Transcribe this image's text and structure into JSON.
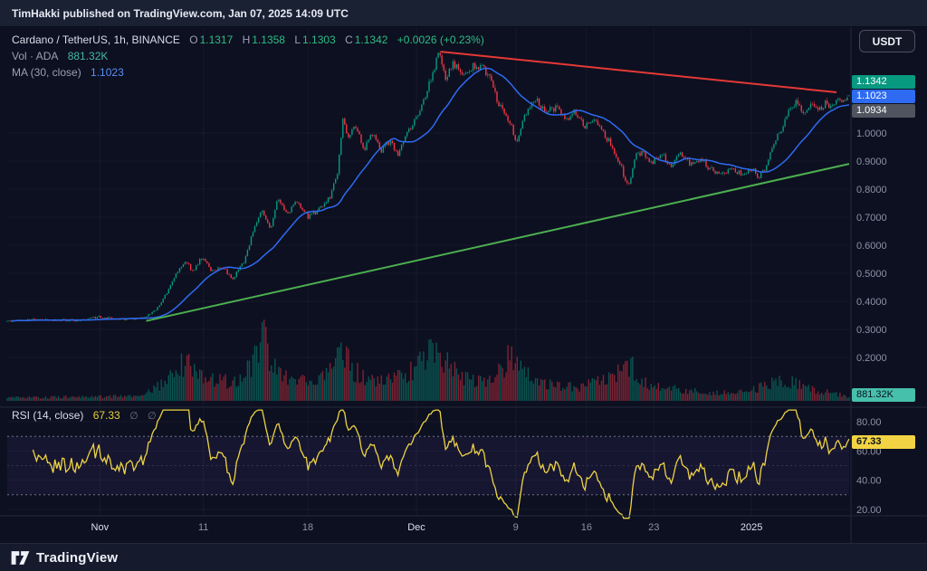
{
  "header": {
    "published_line": "TimHakki published on TradingView.com, Jan 07, 2025 14:09 UTC"
  },
  "toolbar": {
    "currency_button": "USDT"
  },
  "legend": {
    "symbol": "Cardano / TetherUS, 1h, BINANCE",
    "ohlc": {
      "o_label": "O",
      "o": "1.1317",
      "h_label": "H",
      "h": "1.1358",
      "l_label": "L",
      "l": "1.1303",
      "c_label": "C",
      "c": "1.1342",
      "change": "+0.0026 (+0.23%)"
    },
    "volume": {
      "label": "Vol · ADA",
      "value": "881.32K"
    },
    "ma": {
      "label": "MA (30, close)",
      "value": "1.1023"
    }
  },
  "rsi_legend": {
    "label": "RSI (14, close)",
    "value": "67.33",
    "icons": [
      "∅",
      "∅"
    ]
  },
  "axis": {
    "price_labels": [
      {
        "text": "1.0000",
        "p": 1.0
      },
      {
        "text": "0.9000",
        "p": 0.9
      },
      {
        "text": "0.8000",
        "p": 0.8
      },
      {
        "text": "0.7000",
        "p": 0.7
      },
      {
        "text": "0.6000",
        "p": 0.6
      },
      {
        "text": "0.5000",
        "p": 0.5
      },
      {
        "text": "0.4000",
        "p": 0.4
      },
      {
        "text": "0.3000",
        "p": 0.3
      },
      {
        "text": "0.2000",
        "p": 0.2
      }
    ],
    "rsi_labels": [
      {
        "text": "80.00",
        "v": 80
      },
      {
        "text": "60.00",
        "v": 60
      },
      {
        "text": "40.00",
        "v": 40
      },
      {
        "text": "20.00",
        "v": 20
      }
    ],
    "time_labels": [
      {
        "text": "Nov",
        "t": 0.11,
        "major": true
      },
      {
        "text": "11",
        "t": 0.233,
        "major": false
      },
      {
        "text": "18",
        "t": 0.357,
        "major": false
      },
      {
        "text": "Dec",
        "t": 0.486,
        "major": true
      },
      {
        "text": "9",
        "t": 0.604,
        "major": false
      },
      {
        "text": "16",
        "t": 0.688,
        "major": false
      },
      {
        "text": "23",
        "t": 0.768,
        "major": false
      },
      {
        "text": "2025",
        "t": 0.884,
        "major": true
      }
    ],
    "badges": {
      "last_price": "1.1342",
      "ma_value": "1.1023",
      "secondary_price": "1.0934",
      "volume": "881.32K",
      "rsi": "67.33"
    }
  },
  "footer": {
    "brand": "TradingView"
  },
  "colors": {
    "bg": "#0d1020",
    "up": "#089981",
    "down": "#f23645",
    "vol_up": "rgba(8,153,129,0.5)",
    "vol_down": "rgba(242,54,69,0.5)",
    "ma": "#2e6bf2",
    "rsi_line": "#edd344",
    "rsi_band_line": "#7e8497",
    "rsi_band_fill": "rgba(121,83,210,0.10)",
    "grid": "rgba(150,160,190,0.07)",
    "separator": "#232a3b",
    "axis_text": "#8b92a5",
    "axis_text_major": "#dbe0ec"
  },
  "chart_data": {
    "type": "candlestick",
    "symbol": "ADA/USDT",
    "exchange": "BINANCE",
    "interval": "1h",
    "title": "Cardano / TetherUS, 1h, BINANCE",
    "x_axis_span": "Nov 2024 - Jan 2025",
    "y_axis": {
      "min": 0.2,
      "max": 1.32,
      "tick_step": 0.1
    },
    "ohlc_current": {
      "open": 1.1317,
      "high": 1.1358,
      "low": 1.1303,
      "close": 1.1342,
      "change": 0.0026,
      "change_pct": 0.23
    },
    "ma": {
      "period": 30,
      "source": "close",
      "value": 1.1023
    },
    "rsi": {
      "period": 14,
      "source": "close",
      "value": 67.33,
      "bands": [
        70,
        30
      ],
      "scale_labels": [
        80,
        60,
        40,
        20
      ]
    },
    "volume_current": "881.32K",
    "candle_count": 460,
    "seed": 11,
    "price_path": [
      [
        0.0,
        0.33
      ],
      [
        0.04,
        0.335
      ],
      [
        0.08,
        0.332
      ],
      [
        0.11,
        0.345
      ],
      [
        0.135,
        0.336
      ],
      [
        0.16,
        0.34
      ],
      [
        0.175,
        0.365
      ],
      [
        0.19,
        0.43
      ],
      [
        0.2,
        0.5
      ],
      [
        0.212,
        0.545
      ],
      [
        0.22,
        0.505
      ],
      [
        0.232,
        0.56
      ],
      [
        0.242,
        0.505
      ],
      [
        0.255,
        0.525
      ],
      [
        0.268,
        0.48
      ],
      [
        0.282,
        0.545
      ],
      [
        0.292,
        0.65
      ],
      [
        0.302,
        0.73
      ],
      [
        0.312,
        0.655
      ],
      [
        0.322,
        0.77
      ],
      [
        0.332,
        0.715
      ],
      [
        0.345,
        0.755
      ],
      [
        0.358,
        0.7
      ],
      [
        0.372,
        0.73
      ],
      [
        0.384,
        0.775
      ],
      [
        0.393,
        0.87
      ],
      [
        0.399,
        1.07
      ],
      [
        0.404,
        0.975
      ],
      [
        0.413,
        1.02
      ],
      [
        0.424,
        0.945
      ],
      [
        0.434,
        1.0
      ],
      [
        0.444,
        0.93
      ],
      [
        0.454,
        0.97
      ],
      [
        0.464,
        0.925
      ],
      [
        0.476,
        1.005
      ],
      [
        0.49,
        1.08
      ],
      [
        0.502,
        1.18
      ],
      [
        0.513,
        1.285
      ],
      [
        0.52,
        1.2
      ],
      [
        0.53,
        1.245
      ],
      [
        0.54,
        1.21
      ],
      [
        0.552,
        1.235
      ],
      [
        0.562,
        1.24
      ],
      [
        0.574,
        1.195
      ],
      [
        0.584,
        1.1
      ],
      [
        0.596,
        1.045
      ],
      [
        0.605,
        0.97
      ],
      [
        0.613,
        1.05
      ],
      [
        0.628,
        1.125
      ],
      [
        0.64,
        1.07
      ],
      [
        0.652,
        1.095
      ],
      [
        0.663,
        1.05
      ],
      [
        0.674,
        1.075
      ],
      [
        0.686,
        1.02
      ],
      [
        0.698,
        1.055
      ],
      [
        0.708,
        1.0
      ],
      [
        0.718,
        0.955
      ],
      [
        0.728,
        0.89
      ],
      [
        0.738,
        0.8
      ],
      [
        0.746,
        0.93
      ],
      [
        0.756,
        0.925
      ],
      [
        0.766,
        0.895
      ],
      [
        0.778,
        0.925
      ],
      [
        0.788,
        0.885
      ],
      [
        0.8,
        0.925
      ],
      [
        0.812,
        0.885
      ],
      [
        0.824,
        0.905
      ],
      [
        0.836,
        0.87
      ],
      [
        0.848,
        0.855
      ],
      [
        0.86,
        0.875
      ],
      [
        0.872,
        0.855
      ],
      [
        0.884,
        0.875
      ],
      [
        0.893,
        0.845
      ],
      [
        0.9,
        0.87
      ],
      [
        0.91,
        0.95
      ],
      [
        0.92,
        1.02
      ],
      [
        0.929,
        1.085
      ],
      [
        0.938,
        1.11
      ],
      [
        0.947,
        1.07
      ],
      [
        0.956,
        1.1
      ],
      [
        0.964,
        1.08
      ],
      [
        0.972,
        1.105
      ],
      [
        0.98,
        1.09
      ],
      [
        0.988,
        1.115
      ],
      [
        1.0,
        1.1342
      ]
    ],
    "volume_envelope": [
      [
        0.0,
        0.05
      ],
      [
        0.1,
        0.06
      ],
      [
        0.16,
        0.07
      ],
      [
        0.185,
        0.28
      ],
      [
        0.2,
        0.45
      ],
      [
        0.215,
        0.6
      ],
      [
        0.23,
        0.42
      ],
      [
        0.25,
        0.3
      ],
      [
        0.27,
        0.28
      ],
      [
        0.29,
        0.5
      ],
      [
        0.305,
        0.95
      ],
      [
        0.315,
        0.55
      ],
      [
        0.33,
        0.38
      ],
      [
        0.35,
        0.3
      ],
      [
        0.37,
        0.28
      ],
      [
        0.385,
        0.42
      ],
      [
        0.4,
        0.8
      ],
      [
        0.41,
        0.45
      ],
      [
        0.43,
        0.32
      ],
      [
        0.45,
        0.3
      ],
      [
        0.47,
        0.35
      ],
      [
        0.49,
        0.55
      ],
      [
        0.51,
        0.8
      ],
      [
        0.525,
        0.5
      ],
      [
        0.545,
        0.32
      ],
      [
        0.56,
        0.28
      ],
      [
        0.58,
        0.35
      ],
      [
        0.6,
        0.72
      ],
      [
        0.615,
        0.4
      ],
      [
        0.63,
        0.28
      ],
      [
        0.65,
        0.22
      ],
      [
        0.67,
        0.2
      ],
      [
        0.69,
        0.25
      ],
      [
        0.71,
        0.3
      ],
      [
        0.73,
        0.42
      ],
      [
        0.74,
        0.55
      ],
      [
        0.755,
        0.3
      ],
      [
        0.775,
        0.2
      ],
      [
        0.8,
        0.16
      ],
      [
        0.82,
        0.14
      ],
      [
        0.84,
        0.12
      ],
      [
        0.86,
        0.12
      ],
      [
        0.88,
        0.14
      ],
      [
        0.9,
        0.22
      ],
      [
        0.915,
        0.32
      ],
      [
        0.93,
        0.28
      ],
      [
        0.95,
        0.18
      ],
      [
        0.97,
        0.14
      ],
      [
        1.0,
        0.06
      ]
    ],
    "trendlines": [
      {
        "name": "resistance",
        "color": "#e53935",
        "from": [
          0.515,
          1.29
        ],
        "to": [
          0.985,
          1.145
        ]
      },
      {
        "name": "support",
        "color": "#4caf50",
        "from": [
          0.165,
          0.33
        ],
        "to": [
          1.0,
          0.89
        ]
      }
    ]
  }
}
